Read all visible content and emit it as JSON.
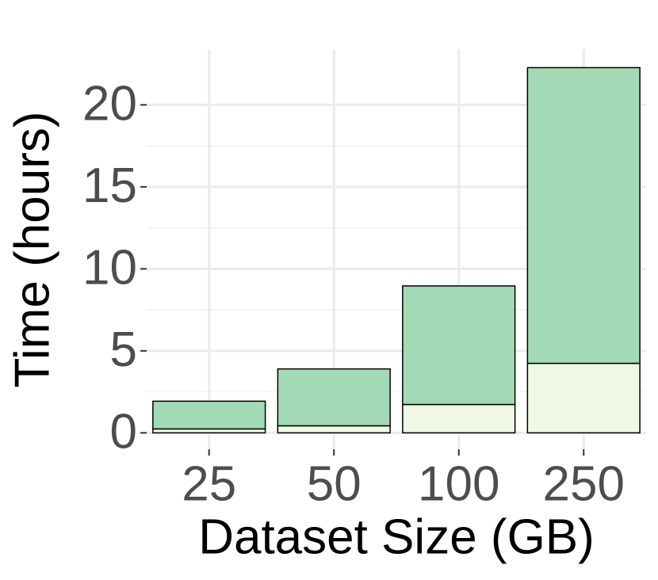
{
  "chart_data": {
    "type": "stacked-bar",
    "x_label": "Dataset Size (GB)",
    "y_label": "Time (hours)",
    "categories": [
      "25",
      "50",
      "100",
      "250"
    ],
    "series": [
      {
        "color": "#f0f7e6",
        "values": [
          0.24,
          0.43,
          1.73,
          4.24
        ]
      },
      {
        "color": "#a3dab5",
        "values": [
          1.69,
          3.47,
          7.23,
          18.03
        ]
      }
    ],
    "ylim": [
      -1,
      23.4
    ],
    "yticks": [
      0,
      5,
      10,
      15,
      20
    ],
    "grid": true
  }
}
